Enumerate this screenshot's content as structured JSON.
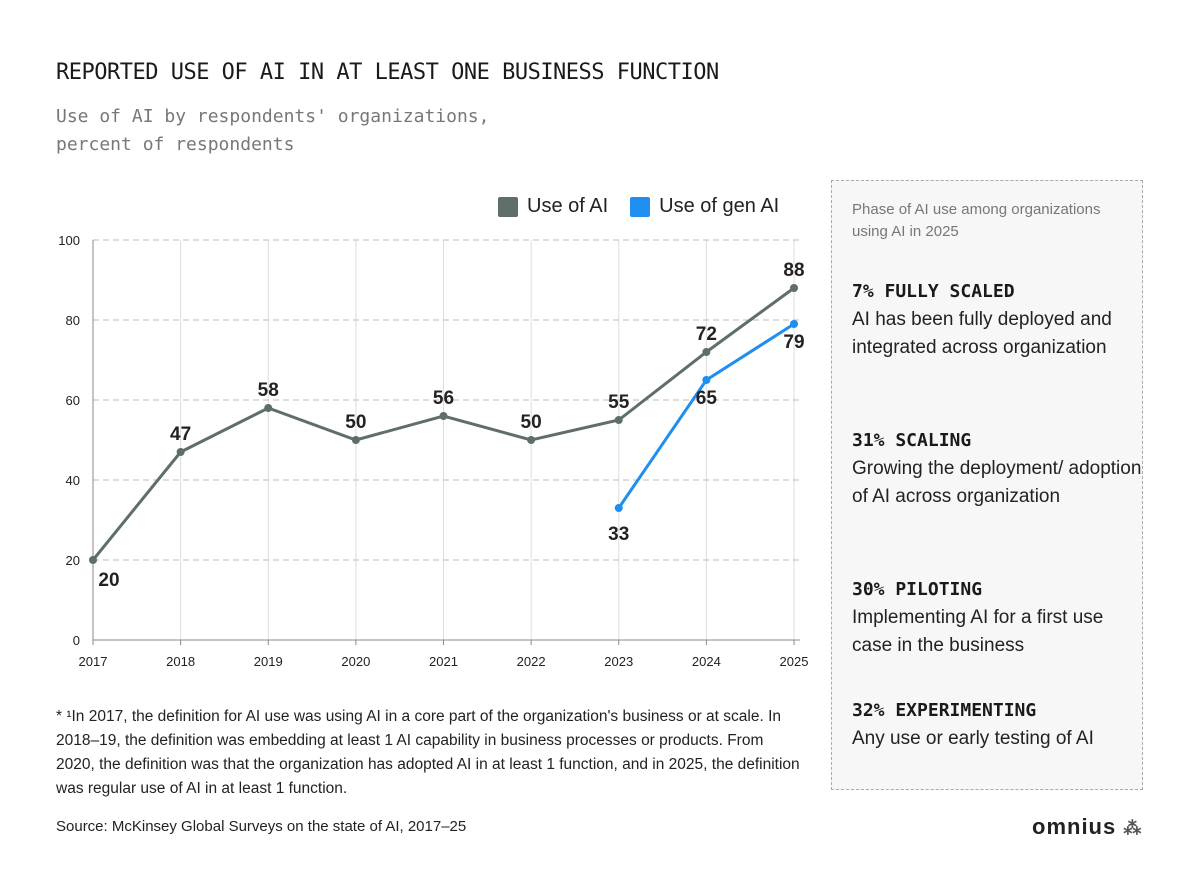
{
  "chart_data": {
    "type": "line",
    "title": "REPORTED USE OF AI IN AT LEAST ONE BUSINESS FUNCTION",
    "subtitle": "Use of AI by respondents' organizations,\npercent of respondents",
    "categories": [
      "2017",
      "2018",
      "2019",
      "2020",
      "2021",
      "2022",
      "2023",
      "2024",
      "2025"
    ],
    "ylim": [
      0,
      100
    ],
    "yticks": [
      "0",
      "20",
      "40",
      "60",
      "80",
      "100"
    ],
    "grid": true,
    "legend_position": "top-right",
    "series": [
      {
        "name": "Use of AI",
        "color": "#5f6e68",
        "values": [
          20,
          47,
          58,
          50,
          56,
          50,
          55,
          72,
          88
        ]
      },
      {
        "name": "Use of gen AI",
        "color": "#1e8ef0",
        "values": [
          null,
          null,
          null,
          null,
          null,
          null,
          33,
          65,
          79
        ]
      }
    ]
  },
  "panel": {
    "heading": "Phase of AI use among organizations using AI in 2025",
    "phases": [
      {
        "title": "7% FULLY SCALED",
        "desc": "AI has been fully deployed and integrated across organization"
      },
      {
        "title": "31% SCALING",
        "desc": "Growing the deployment/ adoption of AI across organization"
      },
      {
        "title": "30% PILOTING",
        "desc": "Implementing AI for a first use case in the business"
      },
      {
        "title": "32% EXPERIMENTING",
        "desc": "Any use or early testing of AI"
      }
    ]
  },
  "footnote": "* ¹In 2017, the definition for AI use was using AI in a core part of the organization's business or at scale. In 2018–19, the definition was embedding at least 1 AI capability in business processes or products. From 2020, the definition was that the organization has adopted AI in at least 1 function, and in 2025, the definition was regular use of AI in at least 1 function.",
  "source": "Source: McKinsey Global Surveys on the state of AI, 2017–25",
  "logo": "omnius"
}
